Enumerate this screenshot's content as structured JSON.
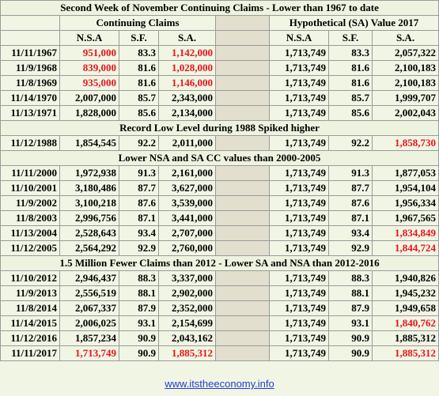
{
  "title": "Second Week of November Continuing Claims - Lower than 1967 to date",
  "group_headers": [
    "Continuing Claims",
    "Hypothetical (SA) Value 2017"
  ],
  "column_headers": [
    "N.S.A",
    "S.F.",
    "S.A.",
    "N.S.A",
    "S.F.",
    "S.A."
  ],
  "highlight_color": "#e8141b",
  "text_color": "#000000",
  "sections": [
    {
      "heading": null,
      "rows": [
        {
          "cells": [
            "11/11/1967",
            "951,000",
            "83.3",
            "1,142,000",
            "1,713,749",
            "83.3",
            "2,057,322"
          ],
          "highlighted": [
            1,
            3
          ]
        },
        {
          "cells": [
            "11/9/1968",
            "839,000",
            "81.6",
            "1,028,000",
            "1,713,749",
            "81.6",
            "2,100,183"
          ],
          "highlighted": [
            1,
            3
          ]
        },
        {
          "cells": [
            "11/8/1969",
            "935,000",
            "81.6",
            "1,146,000",
            "1,713,749",
            "81.6",
            "2,100,183"
          ],
          "highlighted": [
            1,
            3
          ]
        },
        {
          "cells": [
            "11/14/1970",
            "2,007,000",
            "85.7",
            "2,343,000",
            "1,713,749",
            "85.7",
            "1,999,707"
          ],
          "highlighted": []
        },
        {
          "cells": [
            "11/13/1971",
            "1,828,000",
            "85.6",
            "2,134,000",
            "1,713,749",
            "85.6",
            "2,002,043"
          ],
          "highlighted": []
        }
      ]
    },
    {
      "heading": "Record Low Level during 1988 Spiked higher",
      "rows": [
        {
          "cells": [
            "11/12/1988",
            "1,854,545",
            "92.2",
            "2,011,000",
            "1,713,749",
            "92.2",
            "1,858,730"
          ],
          "highlighted": [
            6
          ]
        }
      ]
    },
    {
      "heading": "Lower NSA and SA CC values than 2000-2005",
      "rows": [
        {
          "cells": [
            "11/11/2000",
            "1,972,938",
            "91.3",
            "2,161,000",
            "1,713,749",
            "91.3",
            "1,877,053"
          ],
          "highlighted": []
        },
        {
          "cells": [
            "11/10/2001",
            "3,180,486",
            "87.7",
            "3,627,000",
            "1,713,749",
            "87.7",
            "1,954,104"
          ],
          "highlighted": []
        },
        {
          "cells": [
            "11/9/2002",
            "3,100,218",
            "87.6",
            "3,539,000",
            "1,713,749",
            "87.6",
            "1,956,334"
          ],
          "highlighted": []
        },
        {
          "cells": [
            "11/8/2003",
            "2,996,756",
            "87.1",
            "3,441,000",
            "1,713,749",
            "87.1",
            "1,967,565"
          ],
          "highlighted": []
        },
        {
          "cells": [
            "11/13/2004",
            "2,528,643",
            "93.4",
            "2,707,000",
            "1,713,749",
            "93.4",
            "1,834,849"
          ],
          "highlighted": [
            6
          ]
        },
        {
          "cells": [
            "11/12/2005",
            "2,564,292",
            "92.9",
            "2,760,000",
            "1,713,749",
            "92.9",
            "1,844,724"
          ],
          "highlighted": [
            6
          ]
        }
      ]
    },
    {
      "heading": "1.5 Million Fewer Claims than 2012 - Lower SA and NSA than 2012-2016",
      "rows": [
        {
          "cells": [
            "11/10/2012",
            "2,946,437",
            "88.3",
            "3,337,000",
            "1,713,749",
            "88.3",
            "1,940,826"
          ],
          "highlighted": []
        },
        {
          "cells": [
            "11/9/2013",
            "2,556,519",
            "88.1",
            "2,902,000",
            "1,713,749",
            "88.1",
            "1,945,232"
          ],
          "highlighted": []
        },
        {
          "cells": [
            "11/8/2014",
            "2,067,337",
            "87.9",
            "2,352,000",
            "1,713,749",
            "87.9",
            "1,949,658"
          ],
          "highlighted": []
        },
        {
          "cells": [
            "11/14/2015",
            "2,006,025",
            "93.1",
            "2,154,699",
            "1,713,749",
            "93.1",
            "1,840,762"
          ],
          "highlighted": [
            6
          ]
        },
        {
          "cells": [
            "11/12/2016",
            "1,857,234",
            "90.9",
            "2,043,162",
            "1,713,749",
            "90.9",
            "1,885,312"
          ],
          "highlighted": []
        },
        {
          "cells": [
            "11/11/2017",
            "1,713,749",
            "90.9",
            "1,885,312",
            "1,713,749",
            "90.9",
            "1,885,312"
          ],
          "highlighted": [
            1,
            3,
            6
          ]
        }
      ]
    }
  ],
  "footer": "www.itstheeconomy.info"
}
